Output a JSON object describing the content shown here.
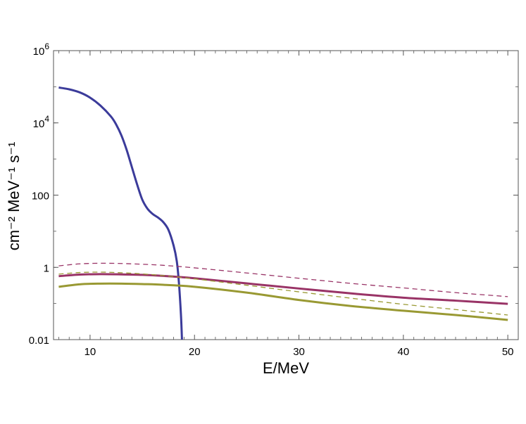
{
  "chart_data": {
    "type": "line",
    "title": "",
    "xlabel": "E/MeV",
    "ylabel": "cm⁻² MeV⁻¹ s⁻¹",
    "xlim": [
      6.5,
      51
    ],
    "ylim": [
      0.01,
      1000000
    ],
    "yscale": "log",
    "grid": false,
    "x_ticks": [
      {
        "value": 10,
        "label": "10"
      },
      {
        "value": 20,
        "label": "20"
      },
      {
        "value": 30,
        "label": "30"
      },
      {
        "value": 40,
        "label": "40"
      },
      {
        "value": 50,
        "label": "50"
      }
    ],
    "y_ticks": [
      {
        "value": 0.01,
        "label": "0.01"
      },
      {
        "value": 1,
        "label": "1"
      },
      {
        "value": 100,
        "label": "100"
      },
      {
        "value": 10000,
        "label": "10",
        "sup": "4"
      },
      {
        "value": 1000000,
        "label": "10",
        "sup": "6"
      }
    ],
    "series": [
      {
        "color": "#3b3b9a",
        "style": "solid",
        "x": [
          7,
          8,
          9,
          10,
          11,
          12,
          12.5,
          13,
          13.5,
          14,
          14.5,
          15,
          15.5,
          16,
          16.5,
          17,
          17.5,
          18,
          18.3,
          18.5,
          18.7,
          18.8
        ],
        "y": [
          95000,
          85000,
          70000,
          50000,
          30000,
          15000,
          9000,
          4500,
          1800,
          600,
          200,
          75,
          42,
          30,
          24,
          18,
          11,
          4,
          1.5,
          0.4,
          0.05,
          0.01
        ]
      },
      {
        "color": "#993366",
        "style": "solid",
        "x": [
          7,
          9,
          11,
          13,
          15,
          17,
          20,
          25,
          30,
          35,
          40,
          45,
          50
        ],
        "y": [
          0.57,
          0.63,
          0.65,
          0.64,
          0.62,
          0.58,
          0.5,
          0.36,
          0.26,
          0.19,
          0.145,
          0.12,
          0.098
        ]
      },
      {
        "color": "#993366",
        "style": "dashed",
        "x": [
          7,
          9,
          11,
          13,
          15,
          17,
          20,
          25,
          30,
          35,
          40,
          45,
          50
        ],
        "y": [
          1.1,
          1.25,
          1.3,
          1.28,
          1.22,
          1.14,
          0.97,
          0.7,
          0.5,
          0.36,
          0.27,
          0.2,
          0.155
        ]
      },
      {
        "color": "#999933",
        "style": "solid",
        "x": [
          7,
          9,
          11,
          13,
          15,
          17,
          20,
          25,
          30,
          35,
          40,
          45,
          50
        ],
        "y": [
          0.29,
          0.34,
          0.355,
          0.355,
          0.345,
          0.33,
          0.29,
          0.2,
          0.125,
          0.085,
          0.063,
          0.048,
          0.035
        ]
      },
      {
        "color": "#999933",
        "style": "dashed",
        "x": [
          7,
          9,
          11,
          13,
          15,
          17,
          20,
          25,
          30,
          35,
          40,
          45,
          50
        ],
        "y": [
          0.65,
          0.72,
          0.74,
          0.71,
          0.66,
          0.59,
          0.48,
          0.32,
          0.21,
          0.14,
          0.095,
          0.068,
          0.048
        ]
      }
    ]
  }
}
